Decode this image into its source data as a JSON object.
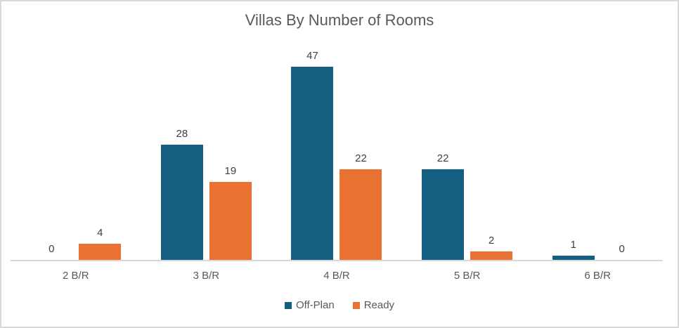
{
  "chart_data": {
    "type": "bar",
    "title": "Villas By Number of Rooms",
    "categories": [
      "2 B/R",
      "3 B/R",
      "4 B/R",
      "5 B/R",
      "6 B/R"
    ],
    "series": [
      {
        "name": "Off-Plan",
        "color": "#156082",
        "values": [
          0,
          28,
          47,
          22,
          1
        ]
      },
      {
        "name": "Ready",
        "color": "#E97132",
        "values": [
          4,
          19,
          22,
          2,
          0
        ]
      }
    ],
    "ylim": [
      0,
      50
    ],
    "grid": false,
    "y_axis_visible": false,
    "data_labels": true,
    "legend_position": "bottom",
    "colors": {
      "axis_line": "#D9D9D9",
      "frame_border": "#D9D9D9",
      "background": "#FFFFFF",
      "title_text": "#595959",
      "data_label_text": "#404040",
      "category_text": "#595959",
      "legend_text": "#595959"
    }
  }
}
